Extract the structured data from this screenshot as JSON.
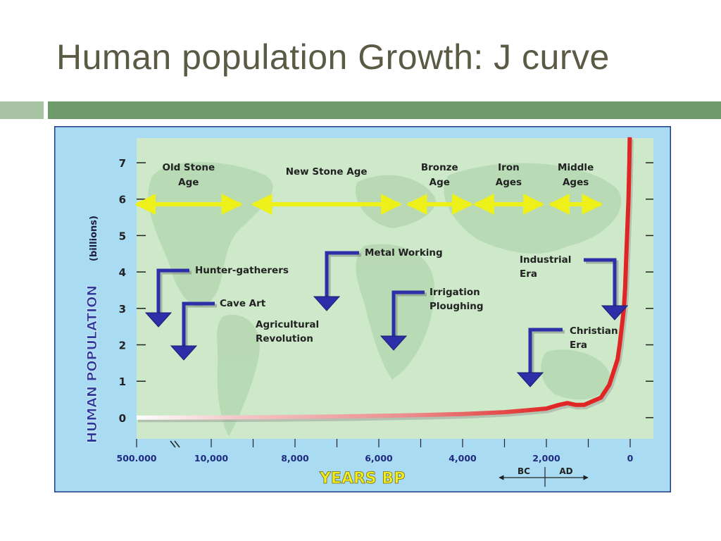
{
  "slide": {
    "title": "Human population Growth: J curve"
  },
  "colors": {
    "title_text": "#5a5a45",
    "accent_bar_light": "#a9c4a4",
    "accent_bar_dark": "#6f9a6c",
    "figure_background": "#a9dcf3",
    "plot_background": "#cde9c9",
    "arrow_yellow": "#eef01a",
    "callout_arrow": "#2d2fa8",
    "curve_red": "#e02525",
    "axis_text": "#1f2a80",
    "ylabel_text": "#2b3b9e",
    "xlabel_text": "#f0ee1e"
  },
  "chart_data": {
    "type": "line",
    "title": "",
    "ylabel": "HUMAN POPULATION",
    "ylabel_unit": "(billions)",
    "xlabel": "YEARS  BP",
    "ylim": [
      0,
      7
    ],
    "y_ticks": [
      "0",
      "1",
      "2",
      "3",
      "4",
      "5",
      "6",
      "7"
    ],
    "x_tick_labels": [
      "500.000",
      "10,000",
      "8,000",
      "6,000",
      "4,000",
      "2,000",
      "0"
    ],
    "x_tick_positions": [
      500000,
      10000,
      8000,
      6000,
      4000,
      2000,
      0
    ],
    "x_scale": "broken: 500,000 BP then linear from 10,000 BP to 0",
    "grid": false,
    "series": [
      {
        "x_years_bp": [
          500000,
          10000,
          9000,
          8000,
          7000,
          6000,
          5000,
          4000,
          3000,
          2500,
          2000,
          1700,
          1500,
          1300,
          1100,
          1000,
          900,
          700,
          500,
          400,
          300,
          250,
          200,
          150,
          120,
          100,
          80,
          60,
          40,
          30,
          20,
          10
        ],
        "population_billions": [
          0.0,
          0.005,
          0.01,
          0.02,
          0.03,
          0.05,
          0.07,
          0.1,
          0.15,
          0.2,
          0.25,
          0.35,
          0.4,
          0.35,
          0.35,
          0.4,
          0.45,
          0.55,
          0.9,
          1.25,
          1.6,
          2.0,
          2.5,
          3.0,
          3.6,
          4.2,
          4.8,
          5.4,
          6.0,
          6.5,
          7.0,
          7.7
        ]
      }
    ],
    "period_labels": [
      {
        "line1": "Old Stone",
        "line2": "Age",
        "from_bp": 10500,
        "to_bp": 9300
      },
      {
        "line1": "New Stone Age",
        "line2": "",
        "from_bp": 9000,
        "to_bp": 5500
      },
      {
        "line1": "Bronze",
        "line2": "Age",
        "from_bp": 5300,
        "to_bp": 3800
      },
      {
        "line1": "Iron",
        "line2": "Ages",
        "from_bp": 3700,
        "to_bp": 2100
      },
      {
        "line1": "Middle",
        "line2": "Ages",
        "from_bp": 1900,
        "to_bp": 700
      }
    ],
    "annotations": [
      {
        "line1": "Hunter-gatherers",
        "line2": ""
      },
      {
        "line1": "Cave Art",
        "line2": ""
      },
      {
        "line1": "Agricultural",
        "line2": "Revolution"
      },
      {
        "line1": "Metal Working",
        "line2": ""
      },
      {
        "line1": "Irrigation",
        "line2": "Ploughing"
      },
      {
        "line1": "Industrial",
        "line2": "Era"
      },
      {
        "line1": "Christian",
        "line2": "Era"
      }
    ],
    "era_markers": {
      "left": "BC",
      "right": "AD"
    }
  }
}
